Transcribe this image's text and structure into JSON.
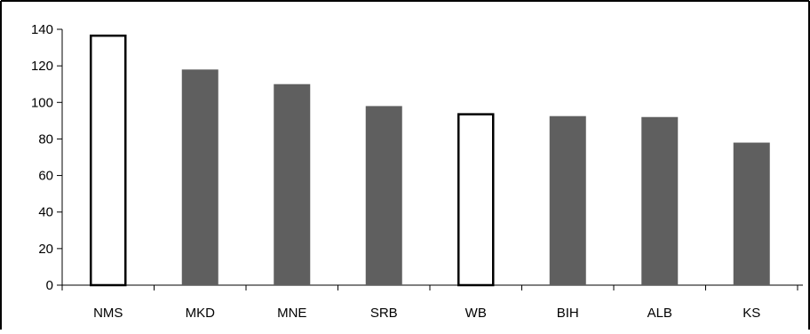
{
  "chart_data": {
    "type": "bar",
    "categories": [
      "NMS",
      "MKD",
      "MNE",
      "SRB",
      "WB",
      "BIH",
      "ALB",
      "KS"
    ],
    "values": [
      137,
      118,
      110,
      98,
      94,
      92.5,
      92,
      78
    ],
    "outlined_categories": [
      "NMS",
      "WB"
    ],
    "ylim": [
      0,
      140
    ],
    "yticks": [
      0,
      20,
      40,
      60,
      80,
      100,
      120,
      140
    ],
    "title": "",
    "xlabel": "",
    "ylabel": "",
    "grid": false,
    "legend": "none",
    "colors": {
      "filled_bar": "#5f5f5f",
      "outlined_bar_fill": "#ffffff",
      "outlined_bar_stroke": "#000000",
      "axis": "#000000",
      "frame": "#000000"
    }
  }
}
